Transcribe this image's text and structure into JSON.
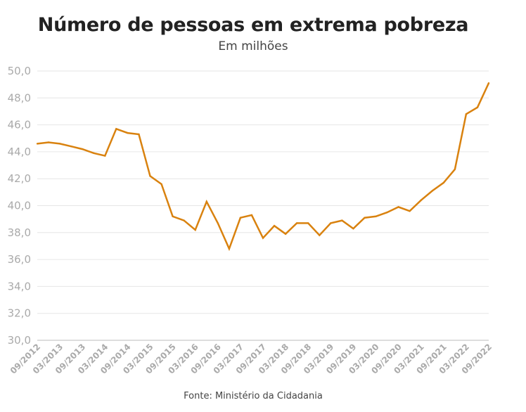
{
  "chart_data": {
    "type": "line",
    "title": "Número de pessoas em extrema pobreza",
    "subtitle": "Em milhões",
    "source": "Fonte: Ministério da Cidadania",
    "ylim": [
      30,
      50
    ],
    "yticks": [
      "30,0",
      "32,0",
      "34,0",
      "36,0",
      "38,0",
      "40,0",
      "42,0",
      "44,0",
      "46,0",
      "48,0",
      "50,0"
    ],
    "xticks": [
      "09/2012",
      "03/2013",
      "09/2013",
      "03/2014",
      "09/2014",
      "03/2015",
      "09/2015",
      "03/2016",
      "09/2016",
      "03/2017",
      "09/2017",
      "03/2018",
      "09/2018",
      "03/2019",
      "09/2019",
      "03/2020",
      "09/2020",
      "03/2021",
      "09/2021",
      "03/2022",
      "09/2022"
    ],
    "line_color": "#d9820f",
    "grid": "horizontal",
    "series": [
      {
        "values": [
          44.6,
          44.7,
          44.6,
          44.4,
          44.2,
          43.9,
          43.7,
          45.7,
          45.4,
          45.3,
          42.2,
          41.6,
          39.2,
          38.9,
          38.2,
          40.3,
          38.7,
          36.8,
          39.1,
          39.3,
          37.6,
          38.5,
          37.9,
          38.7,
          38.7,
          37.8,
          38.7,
          38.9,
          38.3,
          39.1,
          39.2,
          39.5,
          39.9,
          39.6,
          40.4,
          41.1,
          41.7,
          42.7,
          46.8,
          47.3,
          49.1
        ]
      }
    ]
  }
}
